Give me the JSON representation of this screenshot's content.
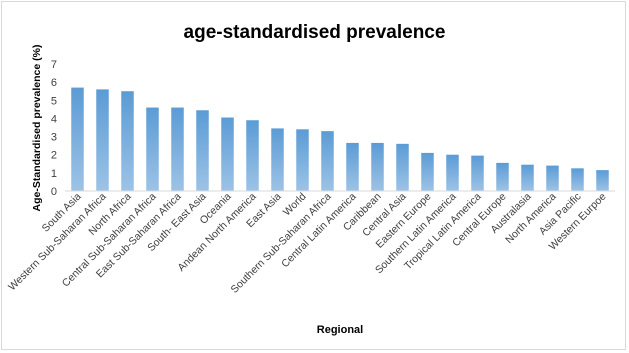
{
  "chart_data": {
    "type": "bar",
    "title": "age-standardised prevalence",
    "xlabel": "Regional",
    "ylabel": "Age-Standardised prevalence (%)",
    "ylim": [
      0,
      7
    ],
    "yticks": [
      0,
      1,
      2,
      3,
      4,
      5,
      6,
      7
    ],
    "grid": false,
    "legend": "none",
    "bar_color": "#5b9bd5",
    "categories": [
      "South Asia",
      "Western Sub-Saharan Africa",
      "North Africa",
      "Central Sub-Saharan Africa",
      "East Sub-Saharan Africa",
      "South- East Asia",
      "Oceania",
      "Andean North America",
      "East Asia",
      "World",
      "Southern Sub-Saharan Africa",
      "Central Latin America",
      "Caribbean",
      "Central Asia",
      "Eastern Europe",
      "Southern Latin America",
      "Tropical Latin America",
      "Central Europe",
      "Australasia",
      "North America",
      "Asia Pacific",
      "Western Eurpoe"
    ],
    "values": [
      5.7,
      5.6,
      5.5,
      4.6,
      4.6,
      4.45,
      4.05,
      3.9,
      3.45,
      3.4,
      3.3,
      2.65,
      2.65,
      2.6,
      2.1,
      2.0,
      1.95,
      1.55,
      1.45,
      1.4,
      1.25,
      1.15
    ]
  }
}
